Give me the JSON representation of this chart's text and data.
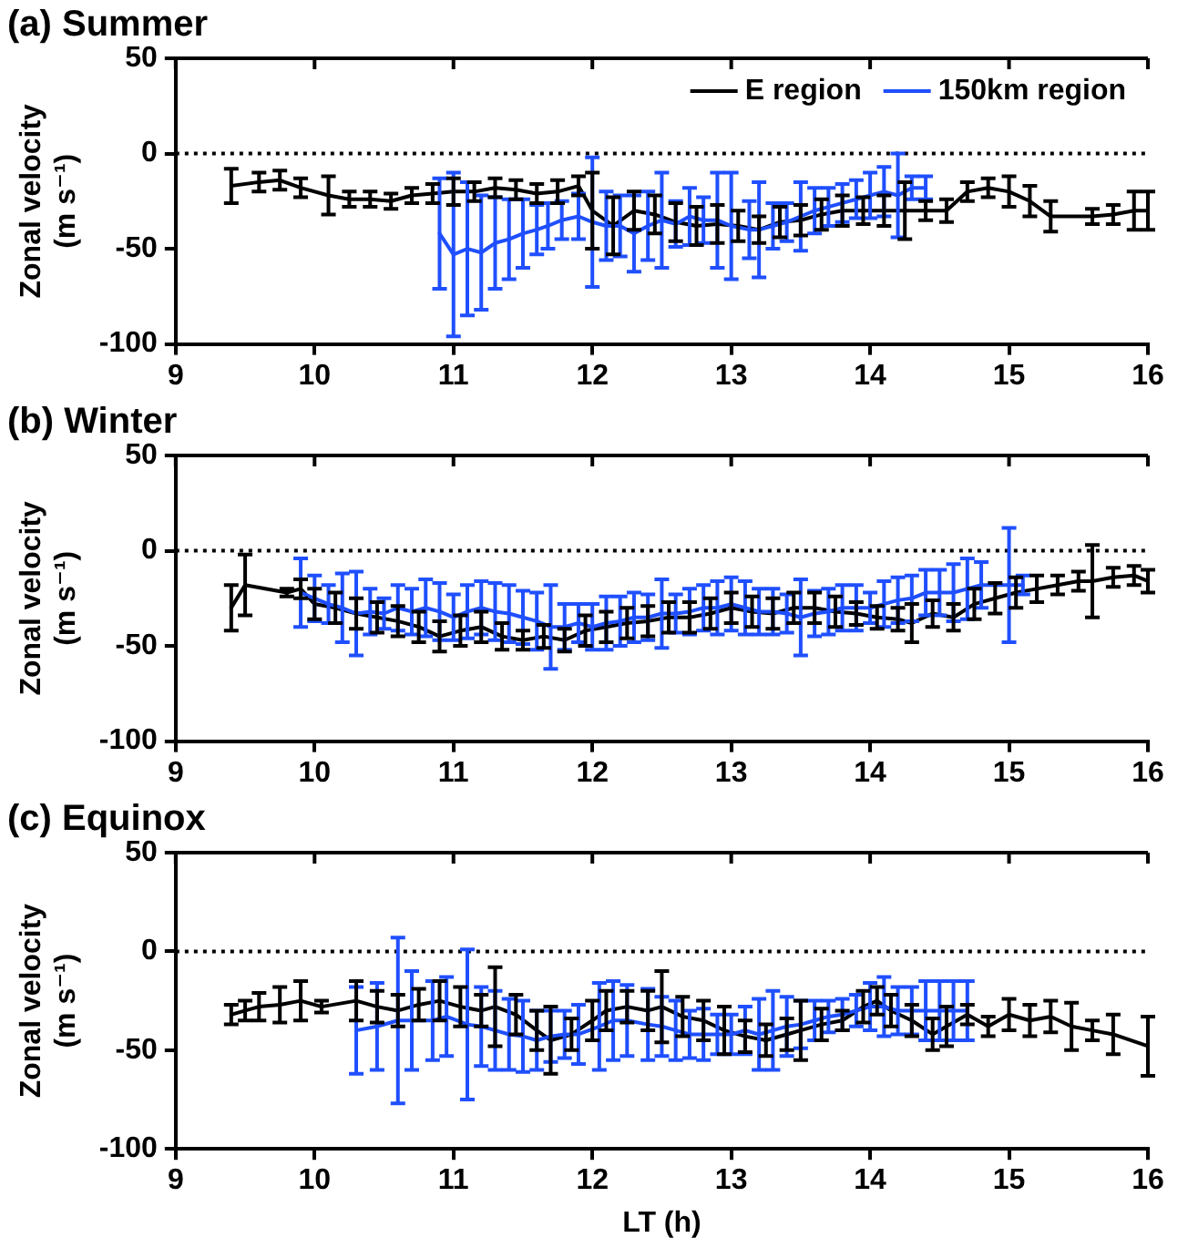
{
  "chart_data": [
    {
      "type": "line",
      "title": "(a) Summer",
      "ylabel": "Zonal velocity (m s⁻¹)",
      "xlim": [
        9,
        16
      ],
      "xticks": [
        9,
        10,
        11,
        12,
        13,
        14,
        15,
        16
      ],
      "ylim": [
        -100,
        50
      ],
      "yticks": [
        -100,
        -50,
        0,
        50
      ],
      "grid": false,
      "legend": "top right",
      "marker": "none",
      "line_style": "solid",
      "ref_lines": [
        {
          "axis": "y",
          "value": 0,
          "line_style": "dotted",
          "color": "#000000"
        }
      ],
      "series": [
        {
          "name": "E region",
          "color": "#000000",
          "x": [
            9.4,
            9.6,
            9.75,
            9.9,
            10.1,
            10.25,
            10.4,
            10.55,
            10.7,
            10.85,
            11.0,
            11.15,
            11.3,
            11.45,
            11.6,
            11.75,
            11.9,
            12.0,
            12.15,
            12.3,
            12.45,
            12.6,
            12.75,
            12.9,
            13.05,
            13.2,
            13.35,
            13.5,
            13.65,
            13.8,
            13.95,
            14.1,
            14.25,
            14.4,
            14.55,
            14.7,
            14.85,
            15.0,
            15.15,
            15.3,
            15.6,
            15.75,
            15.9,
            16.0
          ],
          "values": [
            -17,
            -15,
            -14,
            -18,
            -22,
            -24,
            -24,
            -25,
            -22,
            -21,
            -20,
            -20,
            -18,
            -19,
            -21,
            -20,
            -17,
            -30,
            -38,
            -30,
            -32,
            -36,
            -38,
            -37,
            -38,
            -40,
            -36,
            -35,
            -32,
            -30,
            -30,
            -30,
            -30,
            -30,
            -30,
            -20,
            -18,
            -20,
            -25,
            -33,
            -33,
            -32,
            -30,
            -30
          ],
          "errors": [
            9,
            5,
            5,
            5,
            10,
            4,
            4,
            4,
            4,
            5,
            7,
            5,
            5,
            5,
            5,
            6,
            5,
            20,
            15,
            10,
            10,
            10,
            10,
            10,
            8,
            7,
            8,
            8,
            8,
            8,
            7,
            8,
            15,
            5,
            6,
            5,
            5,
            8,
            8,
            8,
            4,
            5,
            10,
            10
          ]
        },
        {
          "name": "150km region",
          "color": "#1f4fff",
          "x": [
            10.9,
            11.0,
            11.1,
            11.2,
            11.3,
            11.4,
            11.5,
            11.6,
            11.68,
            11.78,
            11.9,
            12.0,
            12.1,
            12.2,
            12.3,
            12.4,
            12.5,
            12.6,
            12.7,
            12.8,
            12.9,
            13.0,
            13.13,
            13.2,
            13.3,
            13.4,
            13.5,
            13.6,
            13.7,
            13.8,
            13.9,
            14.0,
            14.1,
            14.2,
            14.3,
            14.4
          ],
          "values": [
            -42,
            -53,
            -50,
            -52,
            -47,
            -45,
            -42,
            -40,
            -38,
            -35,
            -33,
            -36,
            -38,
            -38,
            -42,
            -38,
            -35,
            -37,
            -33,
            -35,
            -35,
            -38,
            -40,
            -40,
            -38,
            -36,
            -33,
            -30,
            -28,
            -26,
            -24,
            -22,
            -20,
            -22,
            -18,
            -18
          ],
          "errors": [
            29,
            43,
            35,
            30,
            24,
            21,
            18,
            13,
            12,
            10,
            12,
            34,
            18,
            16,
            20,
            18,
            25,
            12,
            15,
            12,
            25,
            28,
            15,
            25,
            12,
            10,
            18,
            12,
            10,
            10,
            10,
            12,
            13,
            22,
            6,
            6
          ]
        }
      ]
    },
    {
      "type": "line",
      "title": "(b) Winter",
      "ylabel": "Zonal velocity (m s⁻¹)",
      "xlim": [
        9,
        16
      ],
      "xticks": [
        9,
        10,
        11,
        12,
        13,
        14,
        15,
        16
      ],
      "ylim": [
        -100,
        50
      ],
      "yticks": [
        -100,
        -50,
        0,
        50
      ],
      "grid": false,
      "marker": "none",
      "line_style": "solid",
      "ref_lines": [
        {
          "axis": "y",
          "value": 0,
          "line_style": "dotted",
          "color": "#000000"
        }
      ],
      "series": [
        {
          "color": "#000000",
          "x": [
            9.4,
            9.5,
            9.8,
            9.9,
            10.0,
            10.15,
            10.3,
            10.45,
            10.6,
            10.75,
            10.9,
            11.05,
            11.2,
            11.35,
            11.5,
            11.65,
            11.8,
            11.95,
            12.1,
            12.25,
            12.4,
            12.55,
            12.7,
            12.85,
            13.0,
            13.15,
            13.3,
            13.45,
            13.6,
            13.75,
            13.9,
            14.05,
            14.2,
            14.3,
            14.45,
            14.6,
            14.75,
            14.9,
            15.05,
            15.2,
            15.35,
            15.5,
            15.6,
            15.75,
            15.9,
            16.0
          ],
          "values": [
            -30,
            -18,
            -22,
            -20,
            -28,
            -30,
            -33,
            -35,
            -37,
            -40,
            -45,
            -42,
            -40,
            -45,
            -47,
            -45,
            -47,
            -42,
            -40,
            -38,
            -37,
            -35,
            -35,
            -33,
            -30,
            -32,
            -33,
            -30,
            -30,
            -32,
            -33,
            -35,
            -36,
            -38,
            -33,
            -35,
            -28,
            -25,
            -22,
            -20,
            -18,
            -16,
            -16,
            -14,
            -13,
            -16
          ],
          "errors": [
            12,
            16,
            2,
            5,
            8,
            8,
            8,
            8,
            8,
            8,
            8,
            8,
            8,
            7,
            5,
            6,
            6,
            8,
            8,
            8,
            8,
            8,
            8,
            8,
            8,
            8,
            8,
            8,
            8,
            8,
            6,
            6,
            6,
            10,
            7,
            7,
            8,
            8,
            8,
            7,
            5,
            5,
            19,
            5,
            5,
            6
          ]
        },
        {
          "color": "#1f4fff",
          "x": [
            9.9,
            10.0,
            10.1,
            10.2,
            10.3,
            10.4,
            10.5,
            10.6,
            10.7,
            10.8,
            10.9,
            11.0,
            11.1,
            11.2,
            11.3,
            11.4,
            11.5,
            11.6,
            11.7,
            11.8,
            11.9,
            12.0,
            12.1,
            12.2,
            12.3,
            12.4,
            12.5,
            12.6,
            12.7,
            12.8,
            12.9,
            13.0,
            13.1,
            13.2,
            13.3,
            13.4,
            13.5,
            13.6,
            13.7,
            13.8,
            13.9,
            14.0,
            14.1,
            14.2,
            14.3,
            14.4,
            14.5,
            14.6,
            14.7,
            14.8,
            15.0,
            15.1
          ],
          "values": [
            -22,
            -25,
            -28,
            -30,
            -33,
            -32,
            -33,
            -30,
            -32,
            -30,
            -32,
            -35,
            -32,
            -30,
            -32,
            -33,
            -35,
            -37,
            -40,
            -40,
            -38,
            -40,
            -38,
            -37,
            -35,
            -35,
            -33,
            -33,
            -32,
            -30,
            -30,
            -28,
            -30,
            -32,
            -32,
            -33,
            -35,
            -33,
            -32,
            -30,
            -30,
            -30,
            -28,
            -26,
            -25,
            -22,
            -22,
            -22,
            -20,
            -18,
            -18,
            -18
          ],
          "errors": [
            18,
            12,
            10,
            18,
            22,
            12,
            8,
            12,
            12,
            15,
            15,
            12,
            14,
            14,
            15,
            15,
            14,
            15,
            22,
            12,
            10,
            12,
            14,
            13,
            13,
            12,
            18,
            10,
            12,
            12,
            14,
            14,
            14,
            12,
            12,
            10,
            20,
            12,
            12,
            12,
            12,
            8,
            12,
            12,
            12,
            12,
            12,
            15,
            16,
            12,
            30,
            5
          ]
        }
      ]
    },
    {
      "type": "line",
      "title": "(c) Equinox",
      "xlabel": "LT (h)",
      "ylabel": "Zonal velocity (m s⁻¹)",
      "xlim": [
        9,
        16
      ],
      "xticks": [
        9,
        10,
        11,
        12,
        13,
        14,
        15,
        16
      ],
      "ylim": [
        -100,
        50
      ],
      "yticks": [
        -100,
        -50,
        0,
        50
      ],
      "grid": false,
      "marker": "none",
      "line_style": "solid",
      "ref_lines": [
        {
          "axis": "y",
          "value": 0,
          "line_style": "dotted",
          "color": "#000000"
        }
      ],
      "series": [
        {
          "color": "#000000",
          "x": [
            9.4,
            9.5,
            9.6,
            9.75,
            9.9,
            10.05,
            10.3,
            10.45,
            10.6,
            10.75,
            10.9,
            11.05,
            11.2,
            11.3,
            11.45,
            11.6,
            11.7,
            11.85,
            12.0,
            12.1,
            12.25,
            12.4,
            12.5,
            12.65,
            12.8,
            12.95,
            13.1,
            13.25,
            13.4,
            13.5,
            13.65,
            13.8,
            13.95,
            14.05,
            14.15,
            14.3,
            14.45,
            14.55,
            14.7,
            14.85,
            15.0,
            15.15,
            15.3,
            15.45,
            15.6,
            15.75,
            16.0
          ],
          "values": [
            -32,
            -30,
            -28,
            -27,
            -25,
            -28,
            -25,
            -28,
            -30,
            -27,
            -25,
            -28,
            -30,
            -28,
            -32,
            -40,
            -45,
            -42,
            -35,
            -30,
            -28,
            -30,
            -28,
            -33,
            -35,
            -40,
            -43,
            -45,
            -42,
            -40,
            -37,
            -35,
            -28,
            -25,
            -30,
            -35,
            -42,
            -38,
            -32,
            -38,
            -32,
            -35,
            -33,
            -38,
            -40,
            -42,
            -48
          ],
          "errors": [
            5,
            5,
            7,
            9,
            10,
            3,
            10,
            8,
            8,
            8,
            10,
            10,
            8,
            20,
            10,
            10,
            17,
            8,
            10,
            10,
            8,
            10,
            18,
            10,
            10,
            12,
            8,
            8,
            8,
            15,
            8,
            5,
            8,
            7,
            8,
            8,
            8,
            10,
            5,
            5,
            8,
            8,
            8,
            12,
            5,
            10,
            15
          ]
        },
        {
          "color": "#1f4fff",
          "x": [
            10.3,
            10.45,
            10.6,
            10.7,
            10.85,
            10.95,
            11.1,
            11.2,
            11.3,
            11.4,
            11.5,
            11.6,
            11.7,
            11.8,
            11.9,
            12.05,
            12.15,
            12.25,
            12.4,
            12.5,
            12.6,
            12.7,
            12.8,
            12.9,
            13.0,
            13.1,
            13.2,
            13.3,
            13.4,
            13.5,
            13.6,
            13.7,
            13.8,
            13.9,
            14.0,
            14.1,
            14.2,
            14.3,
            14.4,
            14.5,
            14.6,
            14.7
          ],
          "values": [
            -40,
            -38,
            -35,
            -35,
            -35,
            -33,
            -37,
            -38,
            -40,
            -42,
            -43,
            -45,
            -43,
            -42,
            -42,
            -38,
            -35,
            -35,
            -37,
            -38,
            -40,
            -42,
            -42,
            -42,
            -42,
            -40,
            -42,
            -40,
            -38,
            -37,
            -35,
            -33,
            -32,
            -30,
            -28,
            -28,
            -30,
            -30,
            -30,
            -30,
            -30,
            -30
          ],
          "errors": [
            22,
            22,
            42,
            25,
            20,
            20,
            38,
            20,
            20,
            18,
            18,
            15,
            13,
            12,
            15,
            22,
            20,
            18,
            18,
            15,
            15,
            12,
            13,
            10,
            10,
            12,
            18,
            20,
            15,
            12,
            10,
            8,
            8,
            8,
            12,
            15,
            12,
            12,
            15,
            15,
            15,
            15
          ]
        }
      ]
    }
  ]
}
